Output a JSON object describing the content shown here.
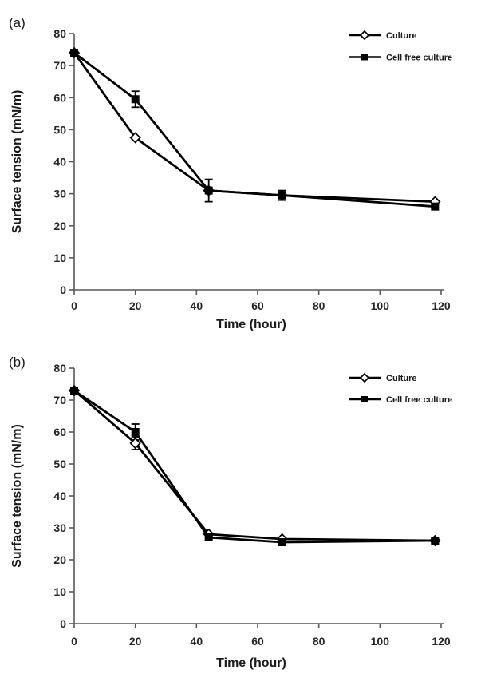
{
  "figure": {
    "background": "#ffffff"
  },
  "chart_data": [
    {
      "panel_label": "(a)",
      "type": "line",
      "title": "",
      "xlabel": "Time (hour)",
      "ylabel": "Surface tension (mN/m)",
      "xlim": [
        0,
        120
      ],
      "ylim": [
        0,
        80
      ],
      "x_ticks": [
        0,
        20,
        40,
        60,
        80,
        100,
        120
      ],
      "y_ticks": [
        0,
        10,
        20,
        30,
        40,
        50,
        60,
        70,
        80
      ],
      "grid": false,
      "legend_position": "top-right",
      "x": [
        0,
        20,
        44,
        68,
        118
      ],
      "series": [
        {
          "name": "Culture",
          "marker": "open-diamond",
          "values": [
            74,
            47.5,
            31,
            29.5,
            27.5
          ],
          "errors": [
            0,
            0,
            0,
            0,
            0
          ]
        },
        {
          "name": "Cell free culture",
          "marker": "filled-square",
          "values": [
            74,
            59.5,
            31,
            29.5,
            26
          ],
          "errors": [
            0,
            2.5,
            3.5,
            1.5,
            0
          ]
        }
      ],
      "colors": {
        "series": "#000000",
        "axis": "#595959",
        "text": "#262626"
      }
    },
    {
      "panel_label": "(b)",
      "type": "line",
      "title": "",
      "xlabel": "Time (hour)",
      "ylabel": "Surface tension (mN/m)",
      "xlim": [
        0,
        120
      ],
      "ylim": [
        0,
        80
      ],
      "x_ticks": [
        0,
        20,
        40,
        60,
        80,
        100,
        120
      ],
      "y_ticks": [
        0,
        10,
        20,
        30,
        40,
        50,
        60,
        70,
        80
      ],
      "grid": false,
      "legend_position": "top-right",
      "x": [
        0,
        20,
        44,
        68,
        118
      ],
      "series": [
        {
          "name": "Culture",
          "marker": "open-diamond",
          "values": [
            73,
            56.5,
            28,
            26.5,
            26
          ],
          "errors": [
            0,
            2,
            0,
            0,
            0
          ]
        },
        {
          "name": "Cell free culture",
          "marker": "filled-square",
          "values": [
            73,
            60,
            27,
            25.5,
            26
          ],
          "errors": [
            0,
            2.5,
            0,
            0,
            0.8
          ]
        }
      ],
      "colors": {
        "series": "#000000",
        "axis": "#595959",
        "text": "#262626"
      }
    }
  ]
}
